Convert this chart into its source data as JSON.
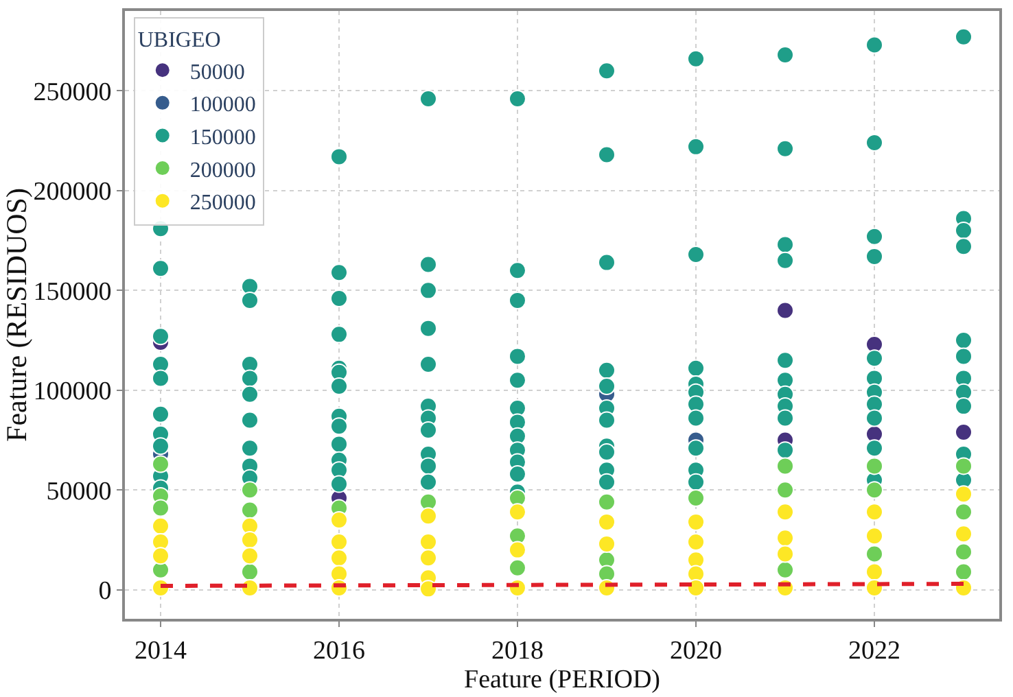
{
  "chart_data": {
    "type": "scatter",
    "xlabel": "Feature (PERIOD)",
    "ylabel": "Feature (RESIDUOS)",
    "legend_title": "UBIGEO",
    "xlim": [
      2013.6,
      2023.4
    ],
    "xticks": [
      2014,
      2016,
      2018,
      2020,
      2022
    ],
    "ylim": [
      -14500,
      290000
    ],
    "yticks": [
      0,
      50000,
      100000,
      150000,
      200000,
      250000
    ],
    "grid": true,
    "legend": "top left",
    "marker": "circle",
    "series": [
      {
        "name": "50000",
        "color": "#46327e",
        "x": [
          2014,
          2016,
          2021,
          2021,
          2022,
          2022,
          2023
        ],
        "values": [
          124000,
          46000,
          140000,
          75000,
          123000,
          78000,
          79000
        ]
      },
      {
        "name": "100000",
        "color": "#365c8d",
        "x": [
          2014,
          2019,
          2020
        ],
        "values": [
          68000,
          98000,
          75000
        ]
      },
      {
        "name": "150000",
        "color": "#1f9e89",
        "x": [
          2014,
          2014,
          2014,
          2014,
          2014,
          2014,
          2014,
          2014,
          2014,
          2014,
          2015,
          2015,
          2015,
          2015,
          2015,
          2015,
          2015,
          2015,
          2015,
          2016,
          2016,
          2016,
          2016,
          2016,
          2016,
          2016,
          2016,
          2016,
          2016,
          2016,
          2016,
          2016,
          2017,
          2017,
          2017,
          2017,
          2017,
          2017,
          2017,
          2017,
          2017,
          2017,
          2017,
          2018,
          2018,
          2018,
          2018,
          2018,
          2018,
          2018,
          2018,
          2018,
          2018,
          2018,
          2018,
          2019,
          2019,
          2019,
          2019,
          2019,
          2019,
          2019,
          2019,
          2019,
          2019,
          2019,
          2020,
          2020,
          2020,
          2020,
          2020,
          2020,
          2020,
          2020,
          2020,
          2020,
          2020,
          2021,
          2021,
          2021,
          2021,
          2021,
          2021,
          2021,
          2021,
          2021,
          2021,
          2022,
          2022,
          2022,
          2022,
          2022,
          2022,
          2022,
          2022,
          2022,
          2022,
          2022,
          2023,
          2023,
          2023,
          2023,
          2023,
          2023,
          2023,
          2023,
          2023,
          2023,
          2023
        ],
        "values": [
          181000,
          161000,
          127000,
          113000,
          106000,
          88000,
          78000,
          72000,
          57000,
          51000,
          152000,
          145000,
          113000,
          106000,
          98000,
          85000,
          71000,
          62000,
          56000,
          217000,
          159000,
          146000,
          128000,
          111000,
          109000,
          102000,
          87000,
          82000,
          73000,
          65000,
          60000,
          53000,
          246000,
          163000,
          150000,
          131000,
          113000,
          92000,
          86000,
          80000,
          68000,
          62000,
          54000,
          246000,
          160000,
          145000,
          117000,
          105000,
          91000,
          84000,
          77000,
          70000,
          64000,
          58000,
          49000,
          260000,
          218000,
          164000,
          110000,
          102000,
          91000,
          85000,
          72000,
          69000,
          60000,
          54000,
          266000,
          222000,
          168000,
          111000,
          103000,
          99000,
          93000,
          86000,
          71000,
          60000,
          54000,
          268000,
          221000,
          173000,
          165000,
          115000,
          105000,
          98000,
          92000,
          86000,
          70000,
          273000,
          224000,
          177000,
          167000,
          116000,
          106000,
          99000,
          93000,
          86000,
          71000,
          55000,
          277000,
          186000,
          180000,
          172000,
          125000,
          117000,
          106000,
          99000,
          92000,
          68000,
          55000
        ]
      },
      {
        "name": "200000",
        "color": "#6ece58",
        "x": [
          2014,
          2014,
          2014,
          2014,
          2015,
          2015,
          2015,
          2016,
          2017,
          2018,
          2018,
          2018,
          2019,
          2019,
          2019,
          2020,
          2021,
          2021,
          2021,
          2022,
          2022,
          2022,
          2023,
          2023,
          2023,
          2023
        ],
        "values": [
          63000,
          47000,
          41000,
          10000,
          50000,
          40000,
          9000,
          41000,
          44000,
          46000,
          27000,
          11000,
          44000,
          15000,
          8000,
          46000,
          62000,
          50000,
          10000,
          62000,
          50000,
          18000,
          62000,
          39000,
          19000,
          9000
        ]
      },
      {
        "name": "250000",
        "color": "#fde725",
        "x": [
          2014,
          2014,
          2014,
          2014,
          2015,
          2015,
          2015,
          2015,
          2016,
          2016,
          2016,
          2016,
          2016,
          2017,
          2017,
          2017,
          2017,
          2017,
          2018,
          2018,
          2018,
          2019,
          2019,
          2019,
          2020,
          2020,
          2020,
          2020,
          2020,
          2021,
          2021,
          2021,
          2021,
          2022,
          2022,
          2022,
          2022,
          2023,
          2023,
          2023
        ],
        "values": [
          32000,
          24000,
          17000,
          1000,
          32000,
          25000,
          17000,
          1000,
          35000,
          24000,
          16000,
          8000,
          1000,
          37000,
          24000,
          16000,
          6000,
          500,
          39000,
          20000,
          1000,
          34000,
          23000,
          1000,
          34000,
          24000,
          15000,
          8000,
          1000,
          39000,
          26000,
          18000,
          1000,
          39000,
          27000,
          9000,
          1000,
          48000,
          28000,
          1000
        ]
      },
      {
        "type": "line",
        "color": "#e0202a",
        "line_style": "dashed",
        "marker": "none",
        "x": [
          2014,
          2023
        ],
        "values": [
          2000,
          3000
        ]
      }
    ]
  }
}
